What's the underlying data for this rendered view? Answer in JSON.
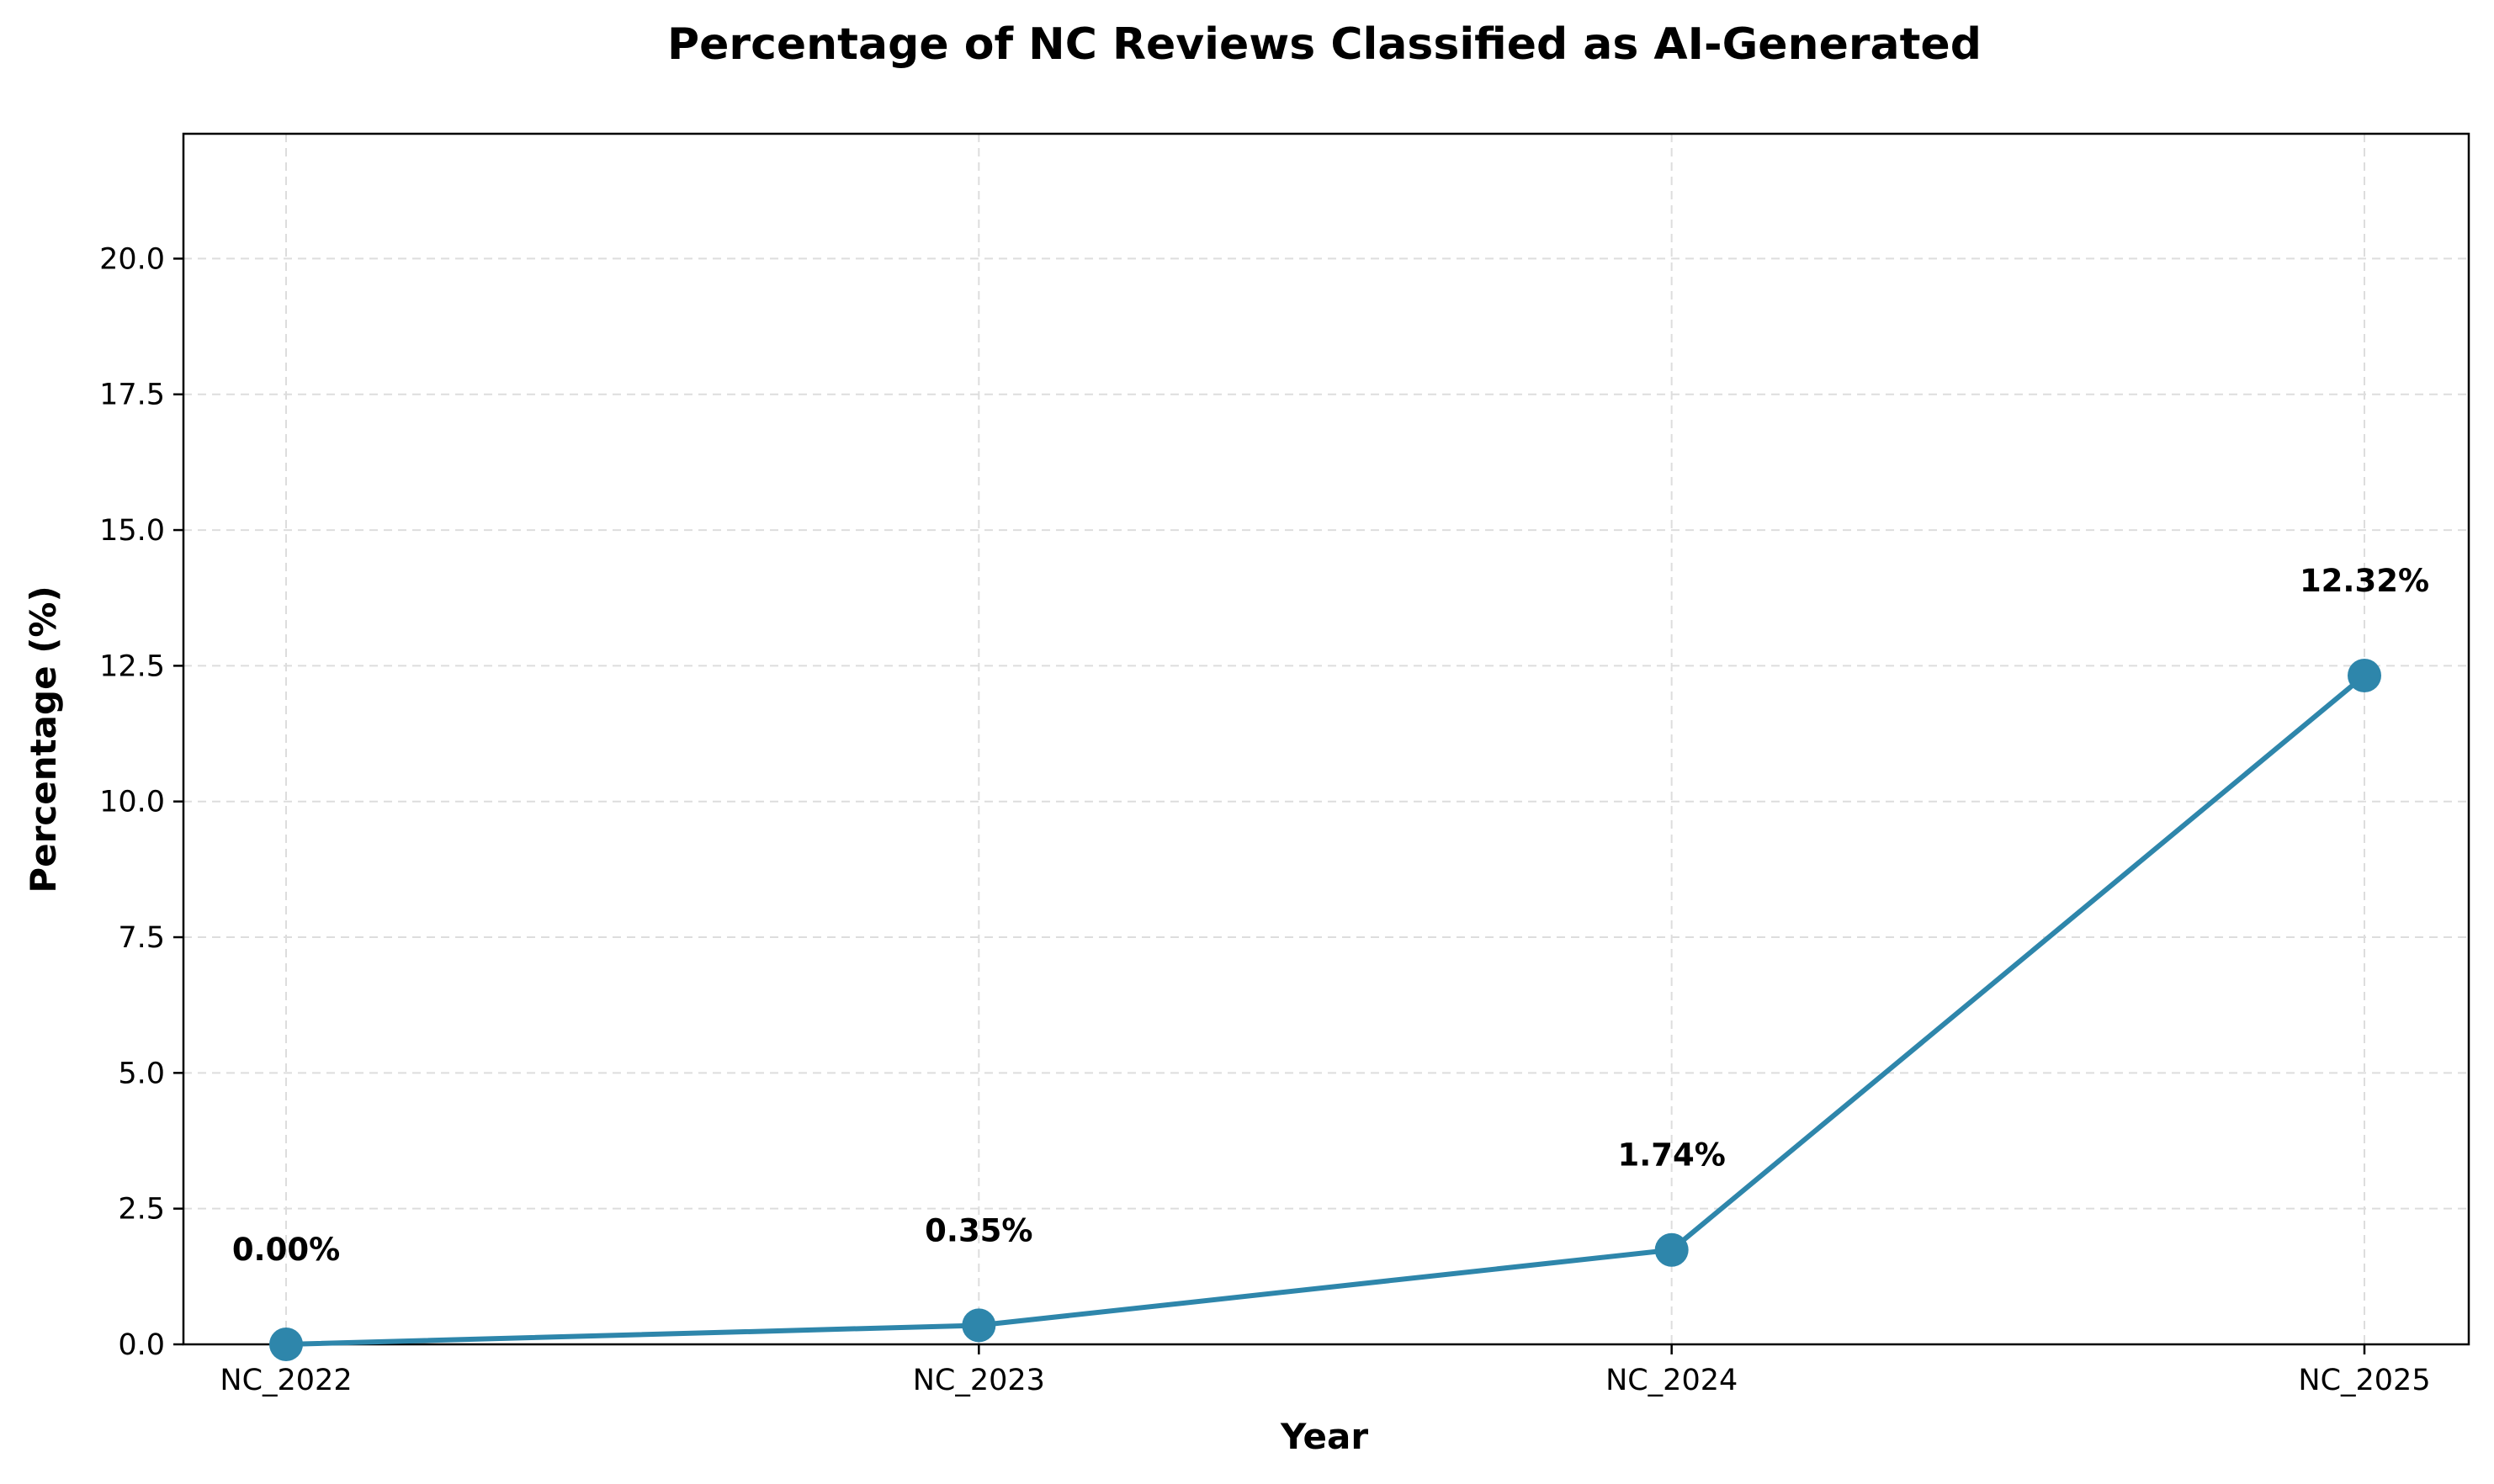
{
  "chart_data": {
    "type": "line",
    "title": "Percentage of NC Reviews Classified as AI-Generated",
    "xlabel": "Year",
    "ylabel": "Percentage (%)",
    "categories": [
      "NC_2022",
      "NC_2023",
      "NC_2024",
      "NC_2025"
    ],
    "series": [
      {
        "values": [
          0.0,
          0.35,
          1.74,
          12.32
        ]
      }
    ],
    "data_labels": [
      "0.00%",
      "0.35%",
      "1.74%",
      "12.32%"
    ],
    "ylim": [
      0,
      22.3
    ],
    "yticks": [
      0.0,
      2.5,
      5.0,
      7.5,
      10.0,
      12.5,
      15.0,
      17.5,
      20.0
    ],
    "ytick_labels": [
      "0.0",
      "2.5",
      "5.0",
      "7.5",
      "10.0",
      "12.5",
      "15.0",
      "17.5",
      "20.0"
    ],
    "grid": true,
    "legend": "none",
    "colors": {
      "line": "#2e86ab",
      "grid": "#dddddd",
      "text": "#000000"
    }
  }
}
